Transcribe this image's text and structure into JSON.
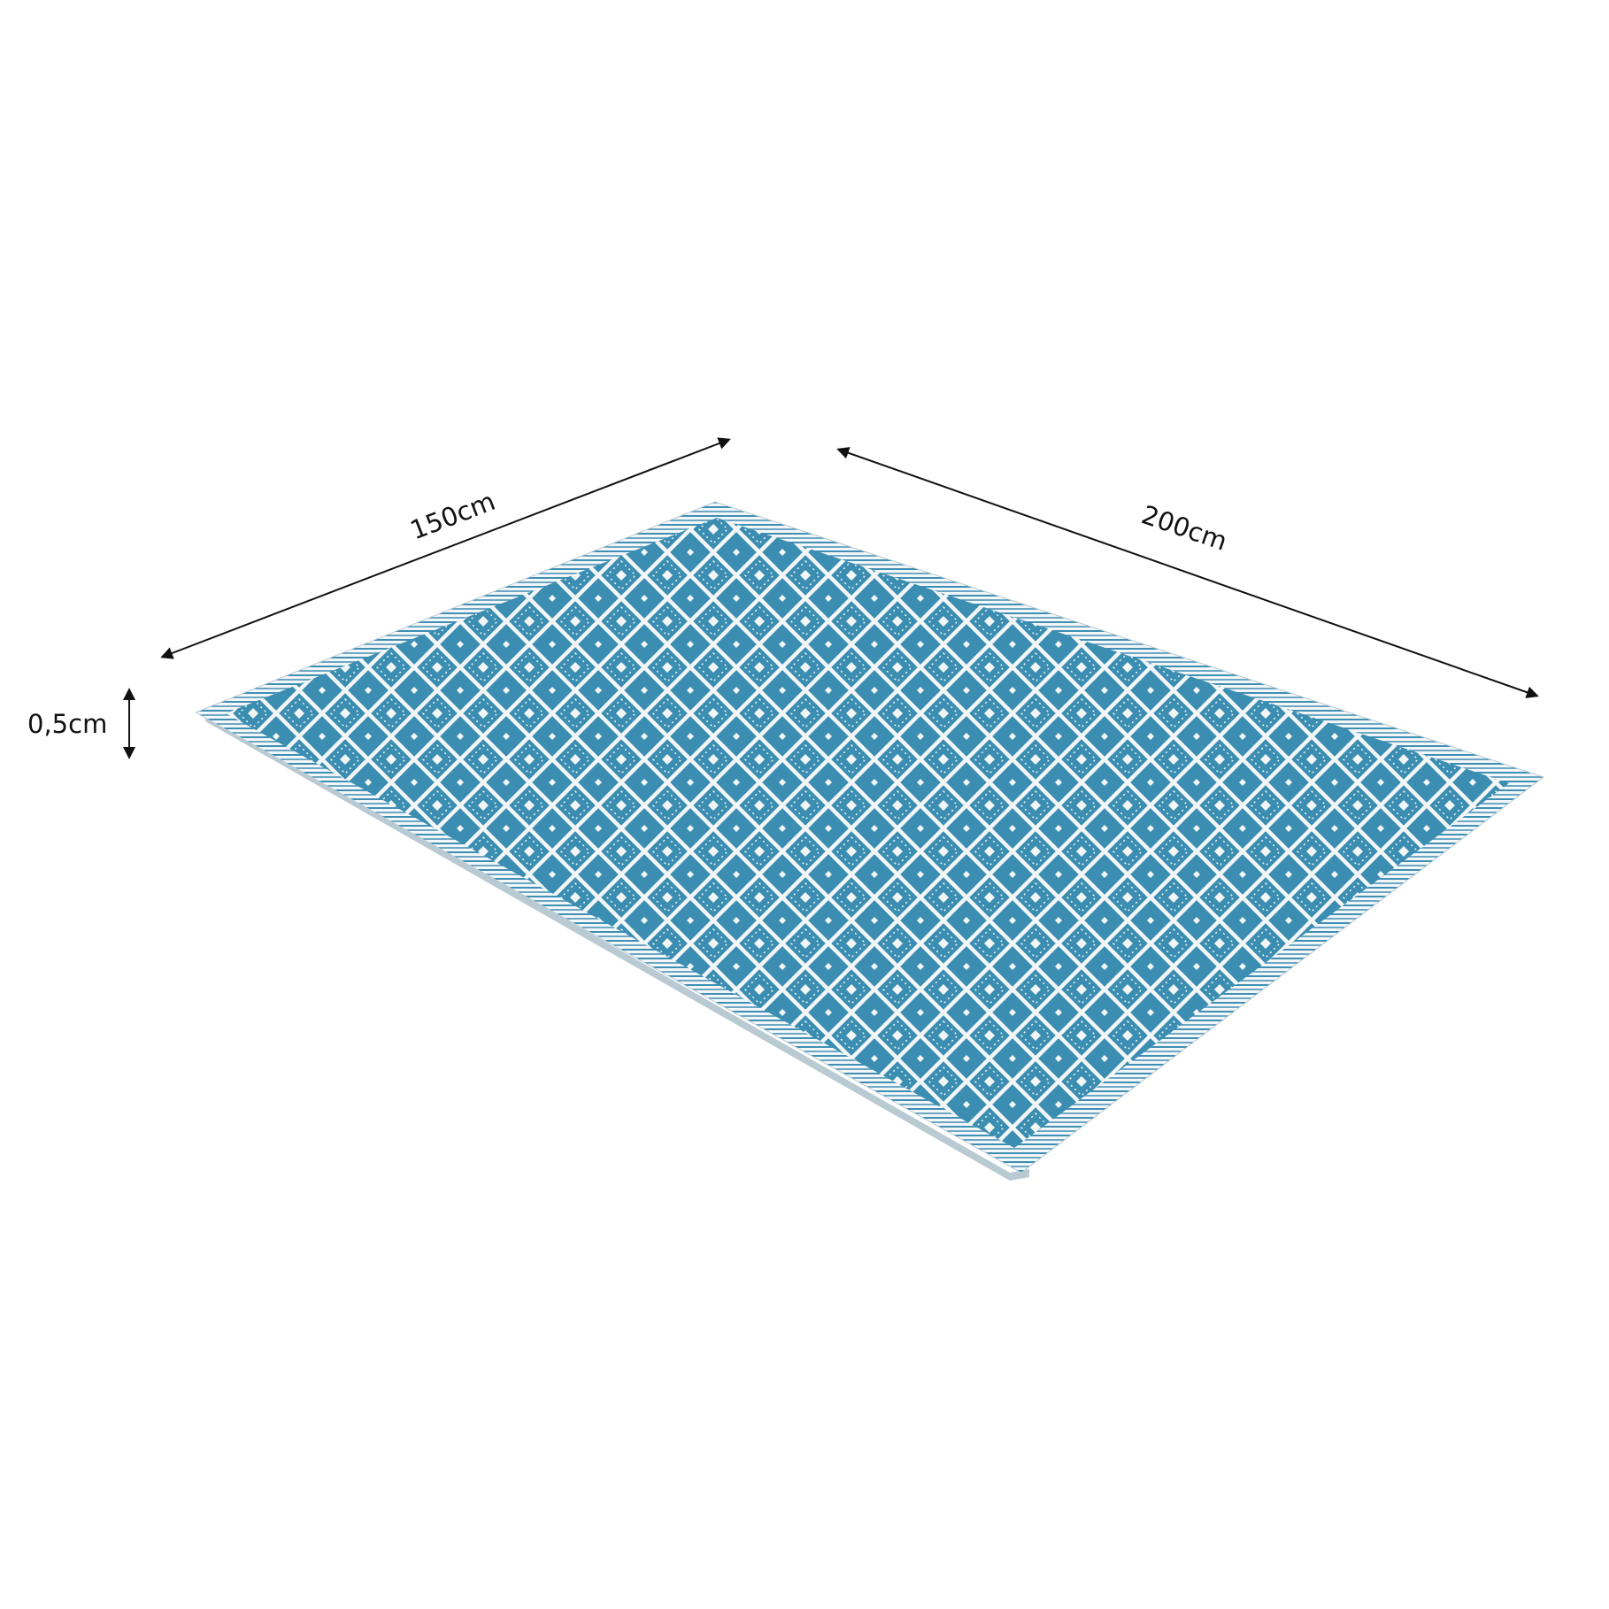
{
  "dimensions": {
    "width_label": "150cm",
    "length_label": "200cm",
    "thickness_label": "0,5cm"
  },
  "colors": {
    "background": "#ffffff",
    "rug_blue": "#2f87ad",
    "rug_white": "#f3f6f7",
    "border_blue": "#3f8fb5",
    "dimension_line": "#111111"
  },
  "icons": {
    "arrowhead": "filled-triangle-arrowhead"
  }
}
